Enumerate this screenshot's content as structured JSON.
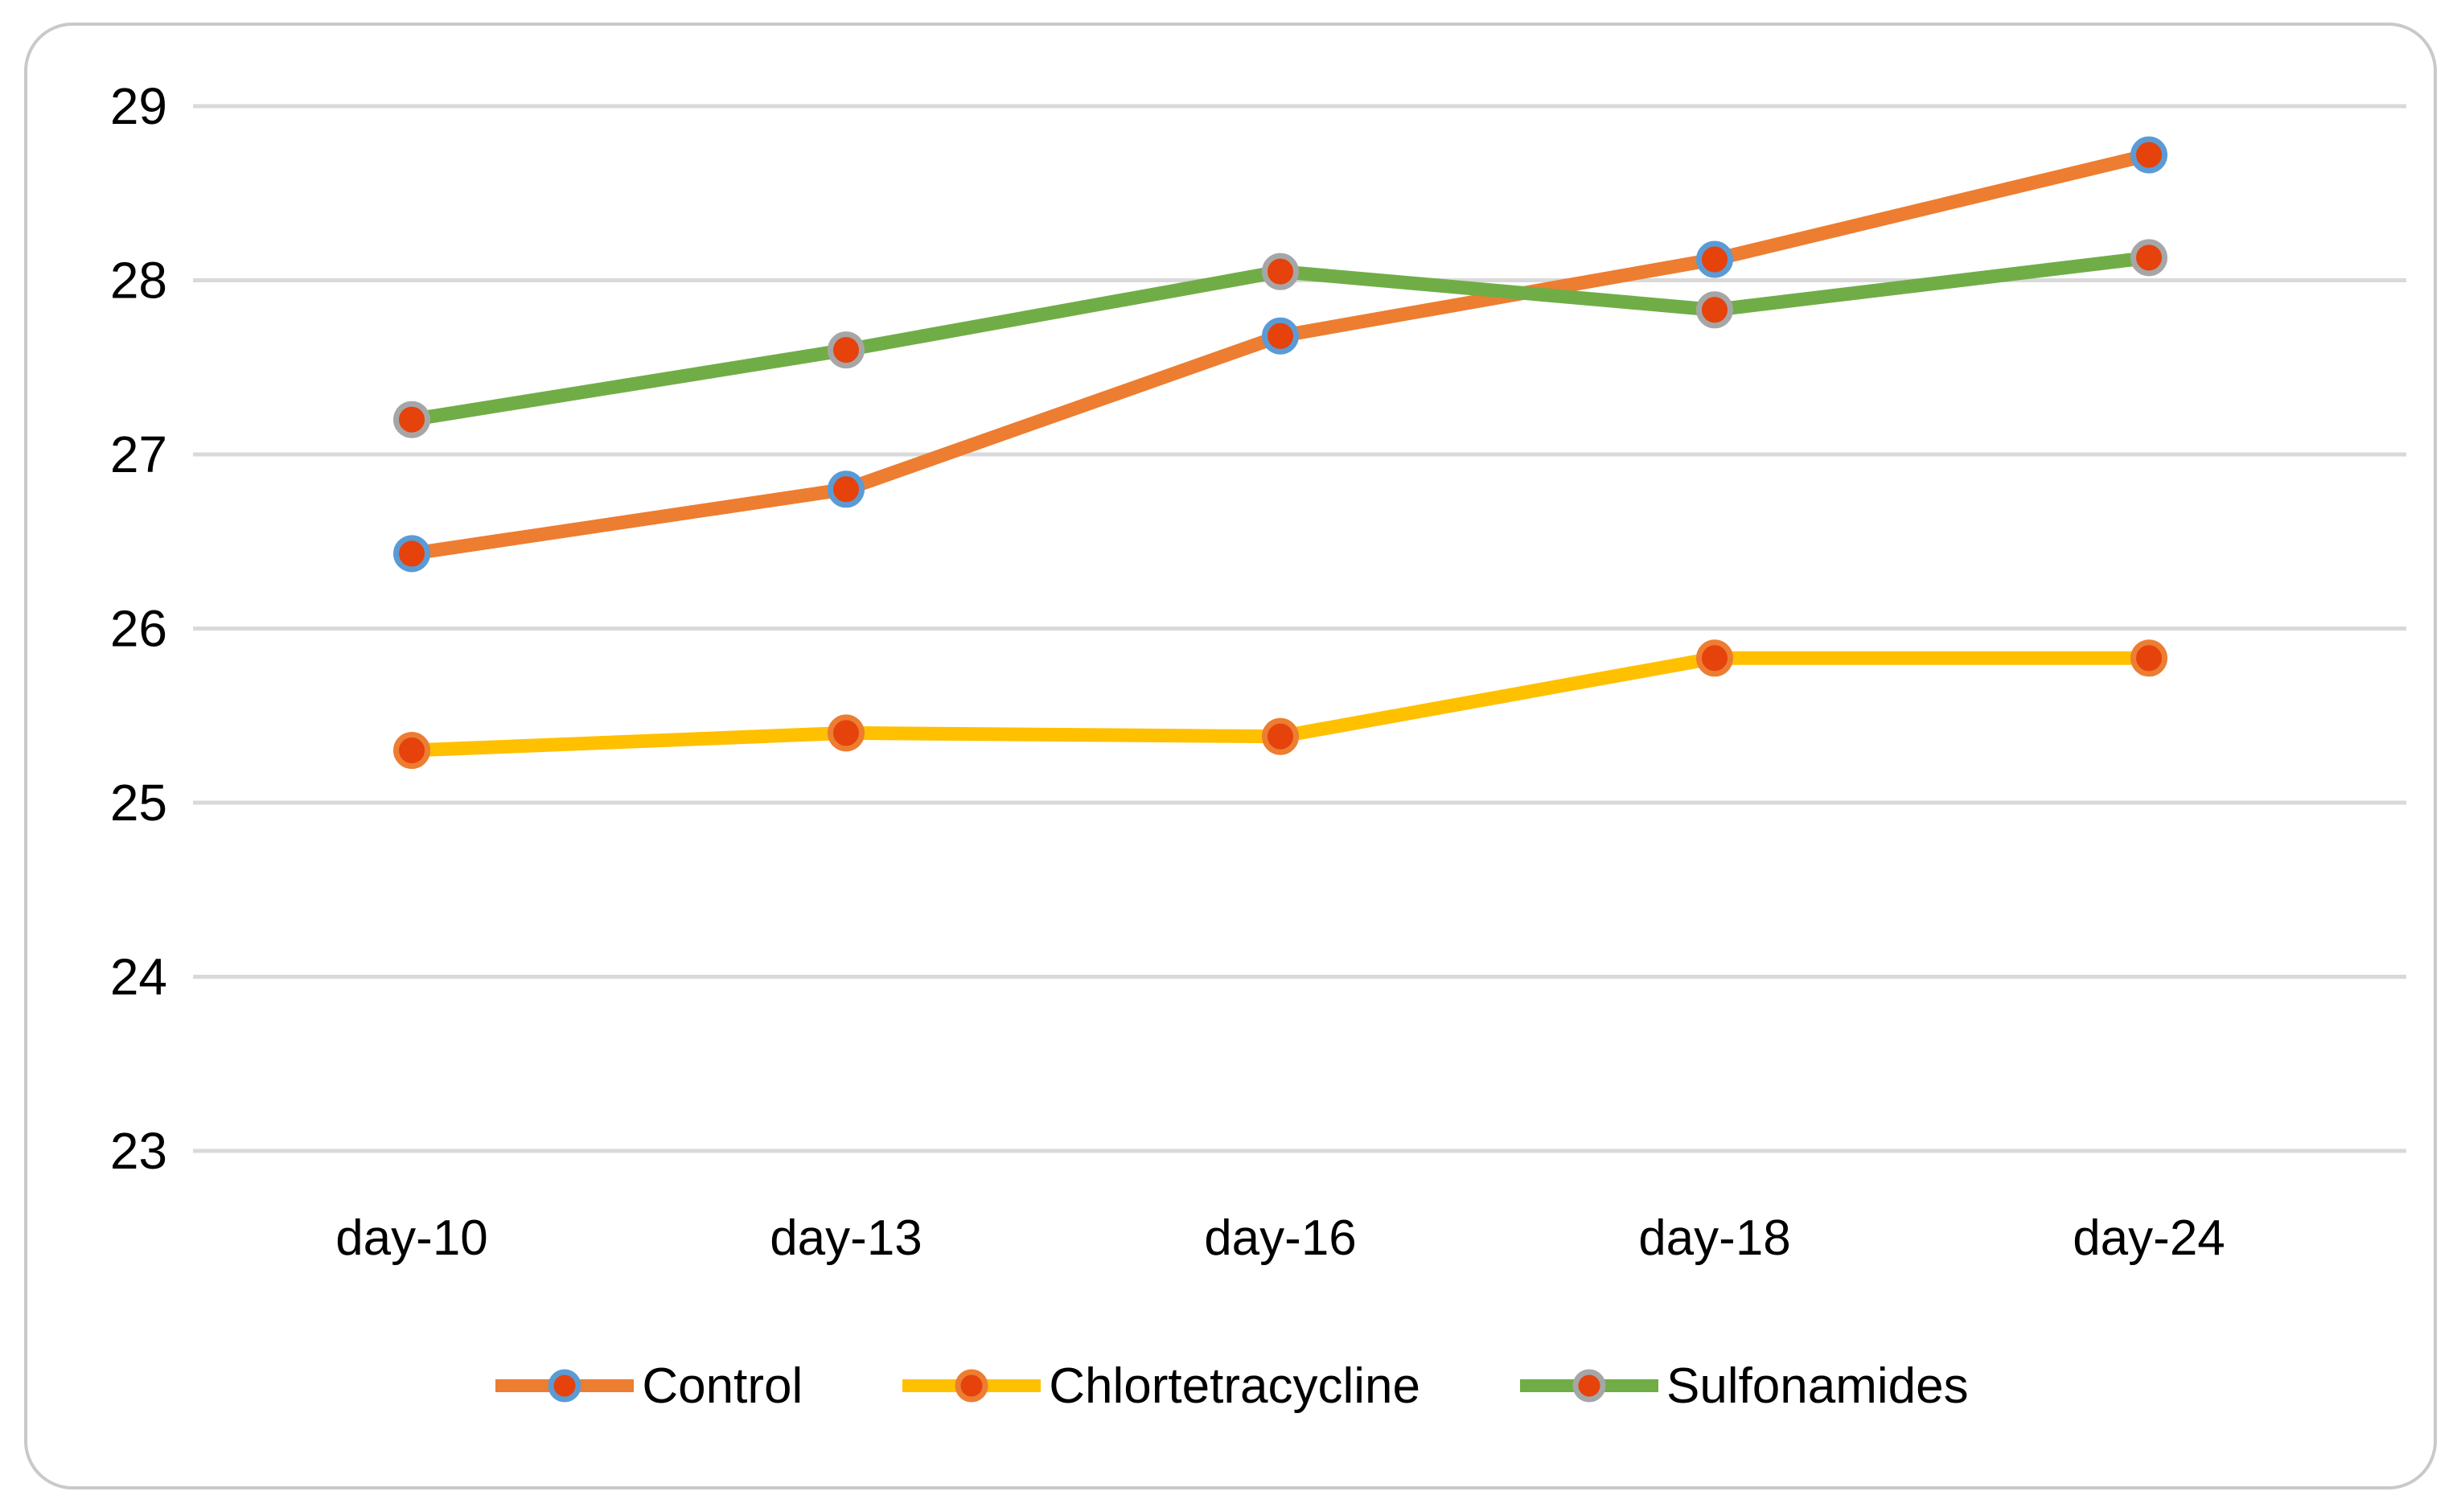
{
  "chart_data": {
    "type": "line",
    "categories": [
      "day-10",
      "day-13",
      "day-16",
      "day-18",
      "day-24"
    ],
    "series": [
      {
        "name": "Control",
        "line_color": "#ED7D31",
        "marker_fill": "#E5420C",
        "marker_outline": "#5B9BD5",
        "values": [
          26.43,
          26.8,
          27.68,
          28.12,
          28.72
        ]
      },
      {
        "name": "Chlortetracycline",
        "line_color": "#FFC000",
        "marker_fill": "#E5420C",
        "marker_outline": "#ED7D31",
        "values": [
          25.3,
          25.4,
          25.38,
          25.83,
          25.83
        ]
      },
      {
        "name": "Sulfonamides",
        "line_color": "#70AD47",
        "marker_fill": "#E5420C",
        "marker_outline": "#A6A6A6",
        "values": [
          27.2,
          27.6,
          28.05,
          27.83,
          28.13
        ]
      }
    ],
    "title": "",
    "xlabel": "",
    "ylabel": "",
    "ylim": [
      23,
      29
    ],
    "yticks": [
      29,
      28,
      27,
      26,
      25,
      24,
      23
    ],
    "grid": true,
    "gridline_color": "#D9D9D9",
    "frame_border_color": "#C9C9C9",
    "background_color": "#FFFFFF",
    "text_color": "#000000",
    "legend_position": "bottom"
  }
}
